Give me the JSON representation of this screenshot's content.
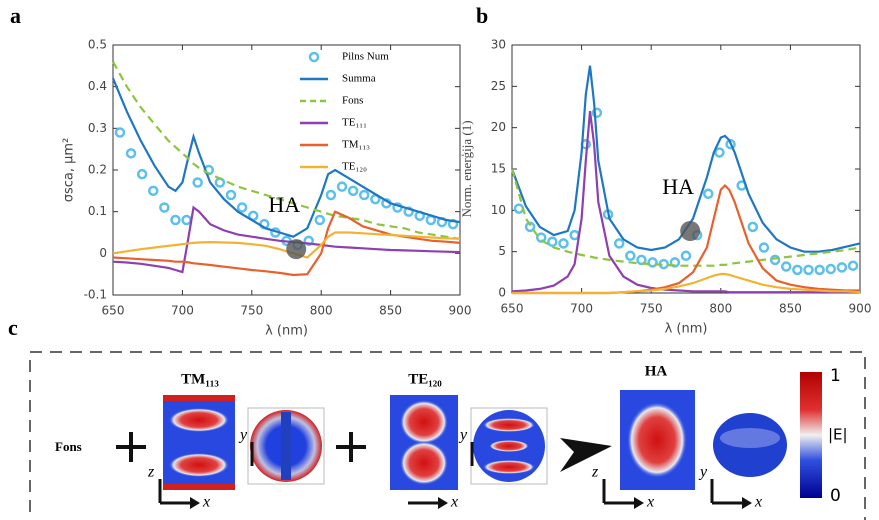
{
  "panel_labels": [
    "a",
    "b",
    "c"
  ],
  "chart_data": [
    {
      "type": "line",
      "ylabel": "σsca, μm²",
      "xlabel": "λ (nm)",
      "xlim": [
        650,
        900
      ],
      "xticks": [
        650,
        700,
        750,
        800,
        850,
        900
      ],
      "ylim": [
        -0.1,
        0.5
      ],
      "yticks": [
        -0.1,
        0,
        0.1,
        0.2,
        0.3,
        0.4,
        0.5
      ],
      "legend": "upper right",
      "annotation": "HA",
      "highlight": {
        "x": 782,
        "y": 0.01
      },
      "x": [
        650,
        660,
        670,
        680,
        690,
        695,
        700,
        705,
        708,
        712,
        720,
        730,
        740,
        750,
        760,
        770,
        780,
        790,
        800,
        805,
        810,
        820,
        830,
        840,
        850,
        860,
        870,
        880,
        890,
        900
      ],
      "series": [
        {
          "name": "Pilns Num",
          "style": "markers",
          "color": "#5bc0eb",
          "x": [
            655,
            663,
            671,
            679,
            687,
            695,
            703,
            711,
            719,
            727,
            735,
            743,
            751,
            759,
            767,
            775,
            783,
            791,
            799,
            807,
            815,
            823,
            831,
            839,
            847,
            855,
            863,
            871,
            879,
            887,
            895
          ],
          "values": [
            0.29,
            0.24,
            0.19,
            0.15,
            0.11,
            0.08,
            0.08,
            0.17,
            0.2,
            0.17,
            0.14,
            0.11,
            0.09,
            0.07,
            0.05,
            0.03,
            0.02,
            0.03,
            0.08,
            0.14,
            0.16,
            0.15,
            0.14,
            0.13,
            0.12,
            0.11,
            0.1,
            0.09,
            0.08,
            0.075,
            0.07
          ]
        },
        {
          "name": "Summa",
          "style": "solid",
          "color": "#1f77c4",
          "values": [
            0.42,
            0.34,
            0.27,
            0.21,
            0.16,
            0.15,
            0.17,
            0.24,
            0.28,
            0.24,
            0.17,
            0.13,
            0.1,
            0.08,
            0.06,
            0.05,
            0.04,
            0.06,
            0.14,
            0.19,
            0.2,
            0.18,
            0.16,
            0.14,
            0.12,
            0.11,
            0.1,
            0.09,
            0.08,
            0.075
          ]
        },
        {
          "name": "Fons",
          "style": "dashed",
          "color": "#8cc63f",
          "values": [
            0.46,
            0.4,
            0.35,
            0.31,
            0.27,
            0.255,
            0.24,
            0.225,
            0.215,
            0.205,
            0.19,
            0.175,
            0.16,
            0.15,
            0.14,
            0.13,
            0.12,
            0.11,
            0.1,
            0.095,
            0.09,
            0.085,
            0.08,
            0.07,
            0.065,
            0.06,
            0.05,
            0.045,
            0.04,
            0.035
          ]
        },
        {
          "name": "TE₁₁₁",
          "style": "solid",
          "color": "#8e3fb0",
          "values": [
            -0.02,
            -0.022,
            -0.025,
            -0.03,
            -0.035,
            -0.04,
            -0.045,
            0.05,
            0.11,
            0.1,
            0.07,
            0.055,
            0.045,
            0.04,
            0.035,
            0.03,
            0.027,
            0.024,
            0.02,
            0.018,
            0.016,
            0.014,
            0.012,
            0.01,
            0.008,
            0.007,
            0.006,
            0.005,
            0.004,
            0.003
          ]
        },
        {
          "name": "TM₁₁₃",
          "style": "solid",
          "color": "#e8602c",
          "values": [
            -0.01,
            -0.012,
            -0.014,
            -0.016,
            -0.018,
            -0.02,
            -0.02,
            -0.022,
            -0.024,
            -0.025,
            -0.028,
            -0.032,
            -0.036,
            -0.04,
            -0.043,
            -0.047,
            -0.052,
            -0.05,
            0.0,
            0.06,
            0.1,
            0.085,
            0.065,
            0.055,
            0.045,
            0.04,
            0.035,
            0.03,
            0.028,
            0.025
          ]
        },
        {
          "name": "TE₁₂₀",
          "style": "solid",
          "color": "#f2b233",
          "values": [
            0.0,
            0.005,
            0.01,
            0.014,
            0.018,
            0.02,
            0.022,
            0.024,
            0.025,
            0.026,
            0.027,
            0.026,
            0.025,
            0.022,
            0.018,
            0.01,
            0.0,
            -0.01,
            0.02,
            0.04,
            0.05,
            0.05,
            0.048,
            0.046,
            0.044,
            0.042,
            0.04,
            0.038,
            0.036,
            0.035
          ]
        }
      ]
    },
    {
      "type": "line",
      "ylabel": "Norm. enerģija (1)",
      "xlabel": "λ (nm)",
      "xlim": [
        650,
        900
      ],
      "xticks": [
        650,
        700,
        750,
        800,
        850,
        900
      ],
      "ylim": [
        0,
        30
      ],
      "yticks": [
        0,
        5,
        10,
        15,
        20,
        25,
        30
      ],
      "annotation": "HA",
      "highlight": {
        "x": 778,
        "y": 7.5
      },
      "x": [
        650,
        660,
        670,
        680,
        690,
        695,
        700,
        703,
        706,
        709,
        712,
        720,
        730,
        740,
        750,
        760,
        770,
        780,
        790,
        795,
        800,
        803,
        806,
        810,
        820,
        830,
        840,
        850,
        860,
        870,
        880,
        890,
        900
      ],
      "series": [
        {
          "style": "markers",
          "color": "#5bc0eb",
          "x": [
            655,
            663,
            671,
            679,
            687,
            695,
            703,
            711,
            719,
            727,
            735,
            743,
            751,
            759,
            767,
            775,
            783,
            791,
            799,
            807,
            815,
            823,
            831,
            839,
            847,
            855,
            863,
            871,
            879,
            887,
            895
          ],
          "values": [
            10.2,
            8,
            6.7,
            6.2,
            6,
            7,
            18,
            21.8,
            9.5,
            6,
            4.5,
            4,
            3.7,
            3.5,
            3.7,
            4.5,
            7,
            12,
            17,
            18,
            13,
            8,
            5.5,
            4,
            3.2,
            2.8,
            2.8,
            2.8,
            2.9,
            3.1,
            3.3
          ]
        },
        {
          "style": "solid",
          "color": "#1f77c4",
          "values": [
            15,
            10.5,
            8,
            7,
            7.5,
            10,
            17,
            24,
            27.5,
            23,
            16,
            9,
            6.5,
            5.5,
            5.2,
            5.5,
            6.5,
            9,
            14,
            17,
            18.8,
            19,
            18.5,
            17,
            12,
            8.5,
            6.5,
            5.5,
            5,
            5,
            5.2,
            5.6,
            6
          ]
        },
        {
          "style": "dashed",
          "color": "#8cc63f",
          "values": [
            15,
            9,
            6.5,
            5.5,
            5,
            4.8,
            4.6,
            4.5,
            4.4,
            4.3,
            4.2,
            4,
            3.8,
            3.6,
            3.5,
            3.4,
            3.3,
            3.3,
            3.3,
            3.3,
            3.4,
            3.4,
            3.5,
            3.6,
            3.8,
            4,
            4.2,
            4.4,
            4.6,
            4.8,
            5,
            5.2,
            5.5
          ]
        },
        {
          "style": "solid",
          "color": "#8e3fb0",
          "values": [
            0.2,
            0.3,
            0.5,
            0.9,
            2,
            3.5,
            9,
            16,
            22,
            18,
            11,
            4.5,
            2,
            1,
            0.6,
            0.4,
            0.3,
            0.2,
            0.2,
            0.2,
            0.2,
            0.2,
            0.1,
            0.1,
            0.1,
            0.1,
            0.1,
            0.1,
            0.1,
            0.1,
            0.1,
            0.1,
            0.1
          ]
        },
        {
          "style": "solid",
          "color": "#e8602c",
          "values": [
            0,
            0,
            0,
            0,
            0,
            0,
            0,
            0,
            0,
            0,
            0,
            0,
            0.1,
            0.2,
            0.4,
            0.7,
            1.2,
            2.5,
            5.5,
            9,
            12.5,
            13,
            12.5,
            11,
            6,
            3,
            1.5,
            1,
            0.7,
            0.5,
            0.4,
            0.3,
            0.3
          ]
        },
        {
          "style": "solid",
          "color": "#f2b233",
          "values": [
            0,
            0,
            0,
            0,
            0,
            0,
            0,
            0,
            0,
            0,
            0,
            0,
            0.1,
            0.2,
            0.3,
            0.5,
            0.8,
            1.2,
            1.8,
            2.1,
            2.3,
            2.3,
            2.2,
            2,
            1.5,
            1,
            0.7,
            0.5,
            0.4,
            0.3,
            0.2,
            0.2,
            0.1
          ]
        }
      ]
    }
  ],
  "panel_c": {
    "background_label": "Fons",
    "modes": [
      "TM₁₁₃",
      "TE₁₂₀",
      "HA"
    ],
    "colorbar": {
      "max": "1",
      "label": "|E|",
      "min": "0"
    },
    "axes": [
      {
        "v": "z",
        "h": "x"
      },
      {
        "v": "y"
      },
      {
        "h": "x"
      },
      {
        "v": "y"
      },
      {
        "v": "z",
        "h": "x"
      },
      {
        "v": "y",
        "h": "x"
      }
    ]
  }
}
